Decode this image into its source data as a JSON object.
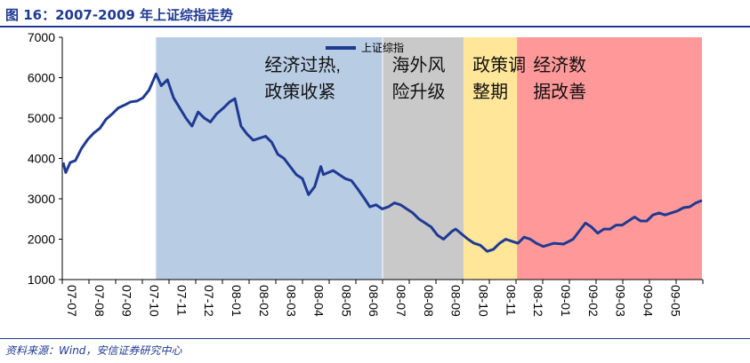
{
  "title": "图 16：2007-2009 年上证综指走势",
  "source": "资料来源：Wind，安信证券研究中心",
  "chart_data": {
    "type": "line",
    "title": "",
    "xlabel": "",
    "ylabel": "",
    "ylim": [
      1000,
      7000
    ],
    "yticks": [
      1000,
      2000,
      3000,
      4000,
      5000,
      6000,
      7000
    ],
    "xlim": [
      "2007-07-01",
      "2009-07-01"
    ],
    "xticks": [
      "07-07",
      "07-08",
      "07-09",
      "07-10",
      "07-11",
      "07-12",
      "08-01",
      "08-02",
      "08-03",
      "08-04",
      "08-05",
      "08-06",
      "08-07",
      "08-08",
      "08-09",
      "08-10",
      "08-11",
      "08-12",
      "09-01",
      "09-02",
      "09-03",
      "09-04",
      "09-05"
    ],
    "legend": {
      "position": "top-center",
      "entries": [
        "上证综指"
      ]
    },
    "grid": false,
    "colors": {
      "line": "#1f3a93",
      "axis": "#000000"
    },
    "regions": [
      {
        "start": "2007-10-16",
        "end": "2008-06-30",
        "color": "#b8cce4",
        "label": [
          "经济过热,",
          "政策收紧"
        ]
      },
      {
        "start": "2008-07-01",
        "end": "2008-10-01",
        "color": "#c9c9c9",
        "label": [
          "海外风",
          "险升级"
        ]
      },
      {
        "start": "2008-10-01",
        "end": "2008-12-01",
        "color": "#ffe699",
        "label": [
          "政策调",
          "整期"
        ]
      },
      {
        "start": "2008-12-01",
        "end": "2009-06-30",
        "color": "#ff9999",
        "label": [
          "经济数",
          "据改善"
        ]
      }
    ],
    "series": [
      {
        "name": "上证综指",
        "x": [
          "2007-07-02",
          "2007-07-05",
          "2007-07-10",
          "2007-07-16",
          "2007-07-23",
          "2007-07-30",
          "2007-08-06",
          "2007-08-13",
          "2007-08-20",
          "2007-08-27",
          "2007-09-03",
          "2007-09-10",
          "2007-09-17",
          "2007-09-24",
          "2007-10-01",
          "2007-10-08",
          "2007-10-16",
          "2007-10-22",
          "2007-10-29",
          "2007-11-05",
          "2007-11-12",
          "2007-11-19",
          "2007-11-26",
          "2007-12-03",
          "2007-12-10",
          "2007-12-17",
          "2007-12-24",
          "2008-01-02",
          "2008-01-08",
          "2008-01-14",
          "2008-01-21",
          "2008-01-28",
          "2008-02-04",
          "2008-02-18",
          "2008-02-25",
          "2008-03-03",
          "2008-03-10",
          "2008-03-17",
          "2008-03-24",
          "2008-03-31",
          "2008-04-07",
          "2008-04-14",
          "2008-04-21",
          "2008-04-24",
          "2008-05-05",
          "2008-05-12",
          "2008-05-19",
          "2008-05-26",
          "2008-06-02",
          "2008-06-10",
          "2008-06-16",
          "2008-06-23",
          "2008-06-30",
          "2008-07-07",
          "2008-07-14",
          "2008-07-21",
          "2008-07-28",
          "2008-08-04",
          "2008-08-11",
          "2008-08-18",
          "2008-08-25",
          "2008-09-01",
          "2008-09-08",
          "2008-09-18",
          "2008-09-22",
          "2008-10-06",
          "2008-10-13",
          "2008-10-20",
          "2008-10-28",
          "2008-11-04",
          "2008-11-11",
          "2008-11-18",
          "2008-11-25",
          "2008-12-02",
          "2008-12-09",
          "2008-12-16",
          "2008-12-23",
          "2008-12-31",
          "2009-01-12",
          "2009-01-23",
          "2009-02-03",
          "2009-02-10",
          "2009-02-17",
          "2009-02-24",
          "2009-03-03",
          "2009-03-10",
          "2009-03-17",
          "2009-03-24",
          "2009-03-31",
          "2009-04-07",
          "2009-04-14",
          "2009-04-21",
          "2009-04-28",
          "2009-05-05",
          "2009-05-12",
          "2009-05-19",
          "2009-05-26",
          "2009-06-02",
          "2009-06-09",
          "2009-06-16",
          "2009-06-23",
          "2009-06-30"
        ],
        "values": [
          3900,
          3650,
          3900,
          3950,
          4250,
          4470,
          4630,
          4750,
          4970,
          5100,
          5250,
          5320,
          5400,
          5420,
          5500,
          5690,
          6092,
          5800,
          5950,
          5500,
          5250,
          5000,
          4800,
          5150,
          5000,
          4900,
          5100,
          5270,
          5400,
          5480,
          4800,
          4600,
          4450,
          4550,
          4400,
          4100,
          4000,
          3800,
          3600,
          3500,
          3100,
          3300,
          3800,
          3600,
          3700,
          3600,
          3500,
          3450,
          3250,
          3000,
          2800,
          2850,
          2750,
          2800,
          2900,
          2850,
          2750,
          2650,
          2500,
          2400,
          2300,
          2100,
          2000,
          2200,
          2250,
          2000,
          1900,
          1850,
          1700,
          1750,
          1900,
          2000,
          1950,
          1900,
          2050,
          2000,
          1900,
          1820,
          1900,
          1880,
          2000,
          2200,
          2400,
          2300,
          2150,
          2250,
          2250,
          2350,
          2350,
          2450,
          2550,
          2450,
          2450,
          2600,
          2650,
          2600,
          2650,
          2700,
          2780,
          2800,
          2900,
          2959
        ]
      }
    ]
  }
}
